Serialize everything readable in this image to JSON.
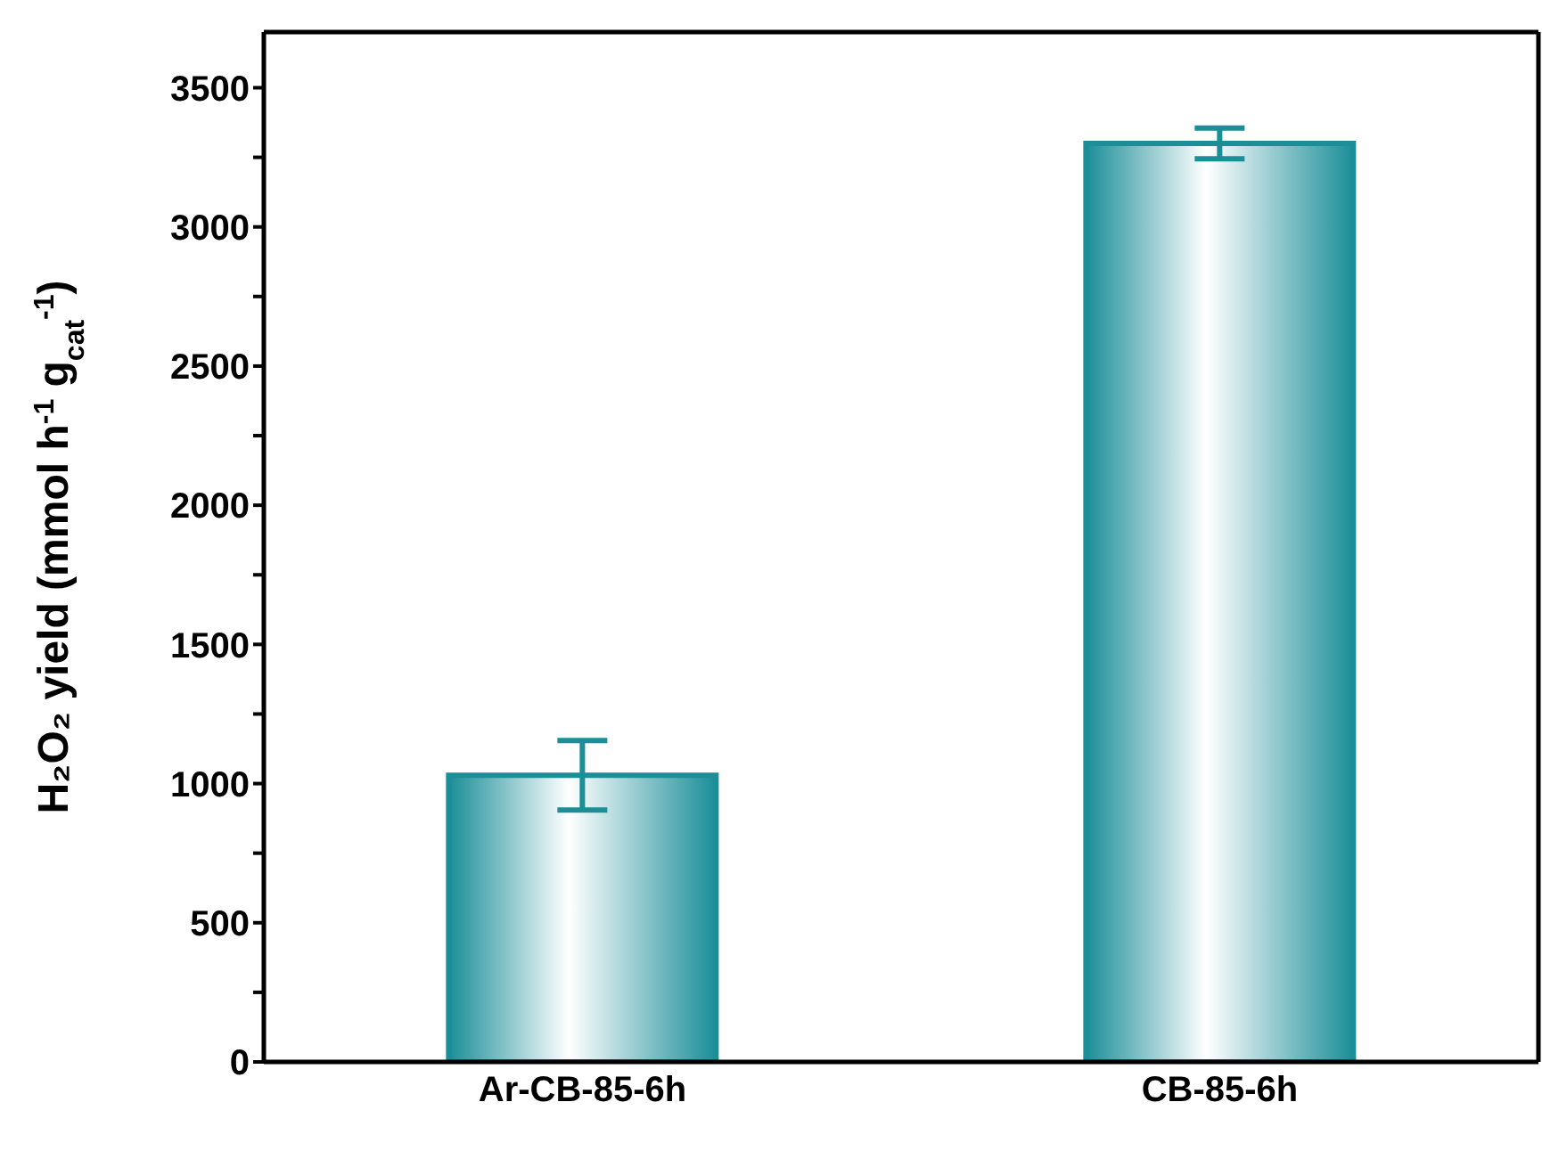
{
  "chart_data": {
    "type": "bar",
    "ylabel": "H₂O₂ yield (mmol h$^{-1}$ g$_{cat}$$^{-1}$)",
    "categories": [
      "Ar-CB-85-6h",
      "CB-85-6h"
    ],
    "values": [
      1030,
      3300
    ],
    "errors": [
      125,
      55
    ],
    "color": "#1b8e98",
    "ylim": [
      0,
      3700
    ],
    "yticks": [
      0,
      {
        "value": 250,
        "label": null
      },
      500,
      {
        "value": 750,
        "label": null
      },
      1000,
      {
        "value": 1250,
        "label": null
      },
      1500,
      {
        "value": 1750,
        "label": null
      },
      2000,
      {
        "value": 2250,
        "label": null
      },
      2500,
      {
        "value": 2750,
        "label": null
      },
      3000,
      {
        "value": 3250,
        "label": null
      },
      3500
    ],
    "grid": false,
    "legend": false
  }
}
